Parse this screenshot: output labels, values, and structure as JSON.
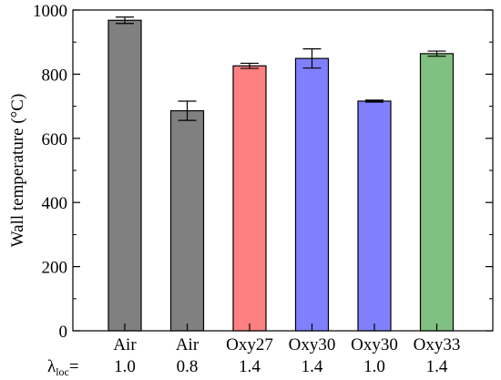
{
  "chart_data": {
    "type": "bar",
    "ylabel": "Wall temperature (°C)",
    "ylim": [
      0,
      1000
    ],
    "yticks": [
      0,
      200,
      400,
      600,
      800,
      1000
    ],
    "row_label": "λ",
    "row_label_sub": "loc",
    "row_label_suffix": "=",
    "categories": [
      {
        "name": "Air",
        "lambda": "1.0",
        "value": 968,
        "error": 10,
        "color": "#808080"
      },
      {
        "name": "Air",
        "lambda": "0.8",
        "value": 686,
        "error": 30,
        "color": "#808080"
      },
      {
        "name": "Oxy27",
        "lambda": "1.4",
        "value": 826,
        "error": 8,
        "color": "#ff8080"
      },
      {
        "name": "Oxy30",
        "lambda": "1.4",
        "value": 849,
        "error": 30,
        "color": "#8080ff"
      },
      {
        "name": "Oxy30",
        "lambda": "1.0",
        "value": 716,
        "error": 3,
        "color": "#8080ff"
      },
      {
        "name": "Oxy33",
        "lambda": "1.4",
        "value": 864,
        "error": 8,
        "color": "#80c080"
      }
    ]
  }
}
